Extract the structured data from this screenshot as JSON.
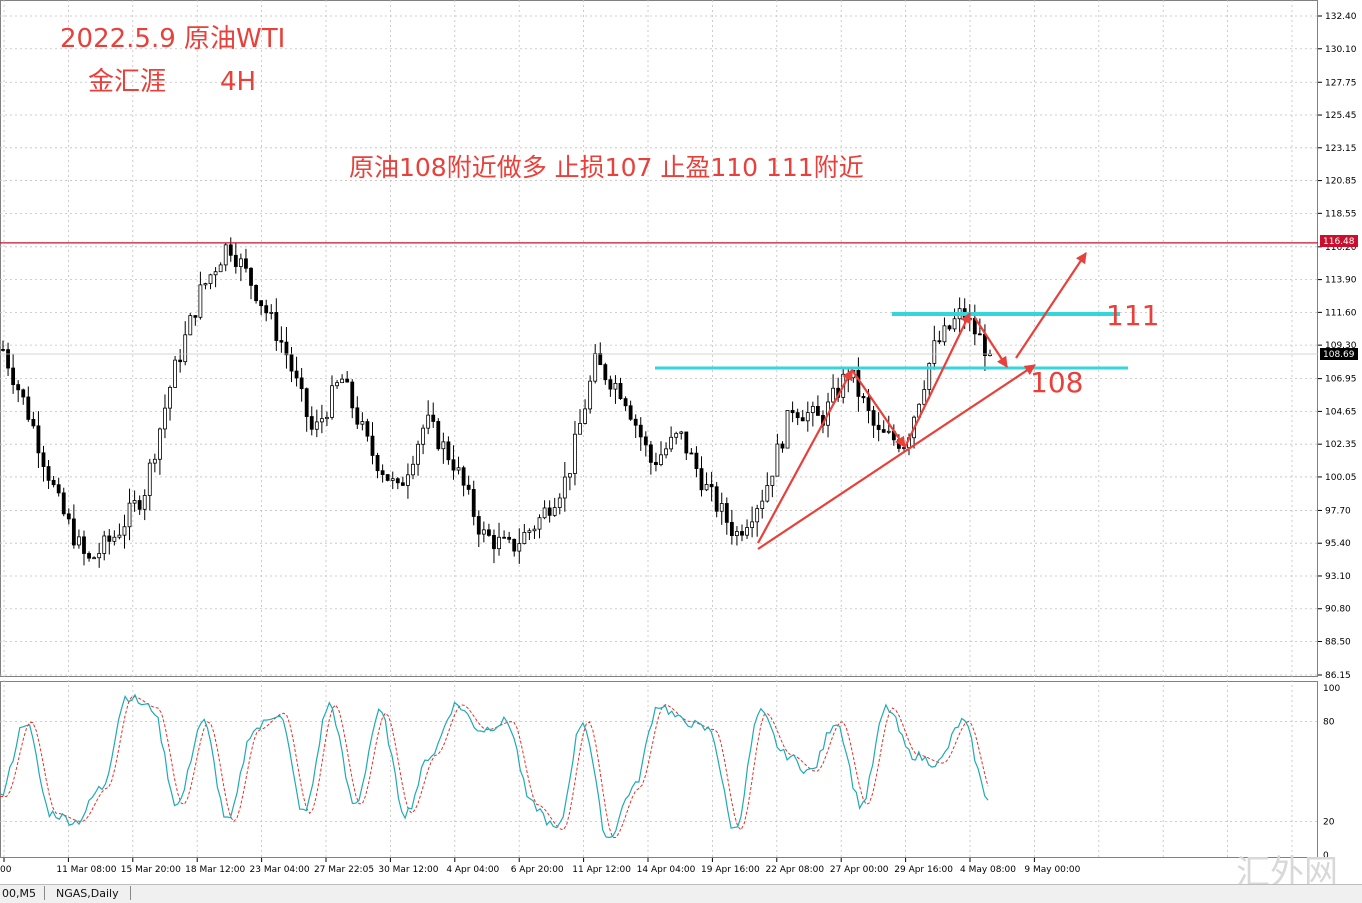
{
  "annotations": {
    "title_date": "2022.5.9 原油WTI",
    "title_source": "金汇涯",
    "title_timeframe": "4H",
    "strategy": "原油108附近做多 止损107 止盈110 111附近",
    "level_111": "111",
    "level_108": "108"
  },
  "watermark": "汇外网",
  "tabs": [
    {
      "label": "00,M5"
    },
    {
      "label": "NGAS,Daily"
    }
  ],
  "colors": {
    "candle": "#000000",
    "resistance_line": "#c8102e",
    "level_lines": "#33d6dd",
    "arrows": "#e8403a",
    "stoch_main": "#20a9b5",
    "stoch_signal": "#e0332a",
    "grid": "#c0c0c0"
  },
  "chart_data": {
    "type": "candlestick",
    "price_axis": {
      "ticks": [
        "132.40",
        "130.10",
        "127.75",
        "125.45",
        "123.15",
        "120.85",
        "118.55",
        "116.20",
        "113.90",
        "111.60",
        "109.30",
        "106.95",
        "104.65",
        "102.35",
        "100.05",
        "97.70",
        "95.40",
        "93.10",
        "90.80",
        "88.50",
        "86.15"
      ],
      "range": [
        86.15,
        132.4
      ],
      "current_price_label": "108.69",
      "resistance_label": "116.48"
    },
    "time_axis": {
      "labels": [
        "00",
        "11 Mar 08:00",
        "15 Mar 20:00",
        "18 Mar 12:00",
        "23 Mar 04:00",
        "27 Mar 22:05",
        "30 Mar 12:00",
        "4 Apr 04:00",
        "6 Apr 20:00",
        "11 Apr 12:00",
        "14 Apr 04:00",
        "19 Apr 16:00",
        "22 Apr 08:00",
        "27 Apr 00:00",
        "29 Apr 16:00",
        "4 May 08:00",
        "9 May 00:00"
      ]
    },
    "levels": {
      "resistance": 116.48,
      "upper_level": 111,
      "lower_level": 108
    },
    "price_path_approx": [
      109,
      104,
      98,
      94,
      96,
      99,
      107,
      113,
      116.5,
      113,
      109,
      103,
      107,
      102,
      99,
      104,
      101,
      96,
      95,
      97,
      100,
      108,
      106,
      101,
      103,
      99,
      96,
      99,
      105,
      104,
      107.5,
      103,
      102.5,
      109,
      111.6,
      108.69
    ],
    "oscillator": {
      "type": "stochastic",
      "levels_labels": [
        "100",
        "80",
        "20",
        "0"
      ],
      "range": [
        0,
        100
      ],
      "main_path_approx": [
        35,
        80,
        25,
        20,
        40,
        95,
        88,
        30,
        80,
        20,
        75,
        85,
        25,
        90,
        30,
        85,
        25,
        60,
        90,
        75,
        80,
        30,
        15,
        80,
        10,
        40,
        90,
        80,
        75,
        15,
        85,
        60,
        50,
        80,
        30,
        88,
        60,
        55,
        80,
        35
      ]
    }
  }
}
